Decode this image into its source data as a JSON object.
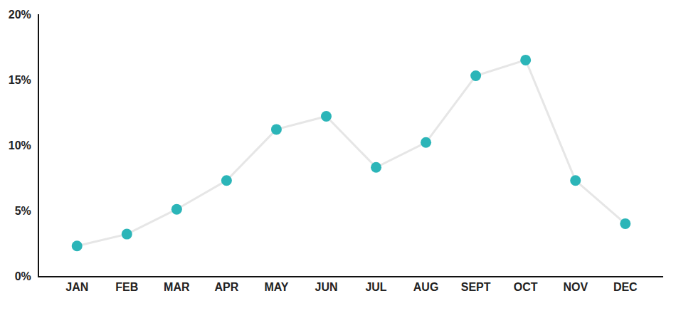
{
  "chart_data": {
    "type": "line",
    "categories": [
      "JAN",
      "FEB",
      "MAR",
      "APR",
      "MAY",
      "JUN",
      "JUL",
      "AUG",
      "SEPT",
      "OCT",
      "NOV",
      "DEC"
    ],
    "values": [
      2.3,
      3.2,
      5.1,
      7.3,
      11.2,
      12.2,
      8.3,
      10.2,
      15.3,
      16.5,
      7.3,
      4.0
    ],
    "color": "#2bb5b8",
    "marker": "circle",
    "ylim": [
      0,
      20
    ],
    "yticks": [
      {
        "value": 0,
        "label": "0%"
      },
      {
        "value": 5,
        "label": "5%"
      },
      {
        "value": 10,
        "label": "10%"
      },
      {
        "value": 15,
        "label": "15%"
      },
      {
        "value": 20,
        "label": "20%"
      }
    ],
    "grid": false
  }
}
